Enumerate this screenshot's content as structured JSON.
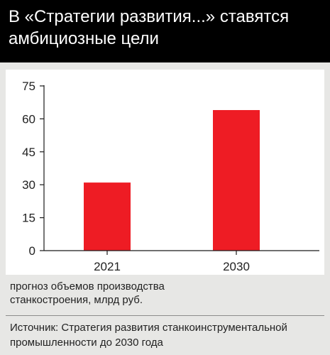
{
  "header": {
    "title_line1": "В «Стратегии развития...» ставятся",
    "title_line2": "амбициозные цели"
  },
  "chart_data": {
    "type": "bar",
    "title": "В «Стратегии развития...» ставятся амбициозные цели",
    "categories": [
      "2021",
      "2030"
    ],
    "values": [
      31,
      64
    ],
    "ylim": [
      0,
      75
    ],
    "yticks": [
      "75",
      "60",
      "45",
      "30",
      "15",
      "0"
    ],
    "y_tick_values": [
      75,
      60,
      45,
      30,
      15,
      0
    ],
    "caption_line1": "прогноз объемов производства",
    "caption_line2": "станкостроения, млрд руб.",
    "grid": false,
    "legend": "none",
    "bar_color": "#ee1c24"
  },
  "footer": {
    "source_line1": "Источник: Стратегия развития станкоинструментальной",
    "source_line2": "промышленности до 2030 года"
  },
  "colors": {
    "header_bg": "#000000",
    "panel_bg": "#e7e7e5",
    "plot_bg": "#ffffff",
    "bar": "#ee1c24"
  }
}
